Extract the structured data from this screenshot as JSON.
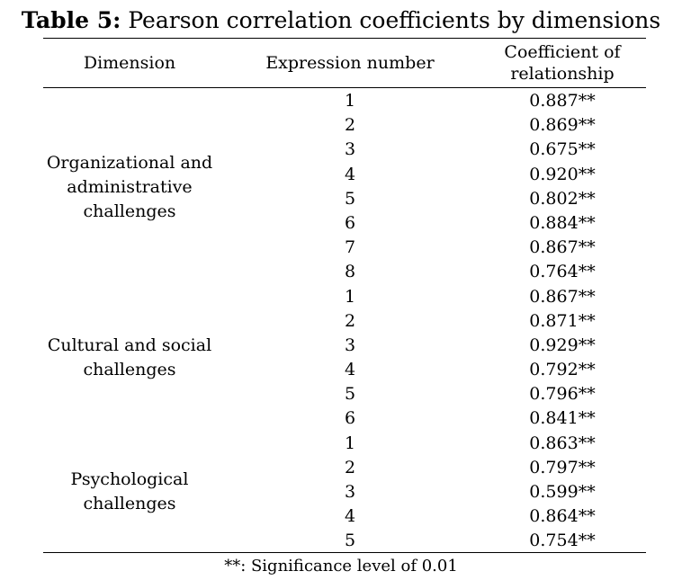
{
  "table": {
    "title_label": "Table 5:",
    "title_text": "Pearson correlation coefficients by dimensions",
    "headers": {
      "dimension": "Dimension",
      "expression_number": "Expression number",
      "coefficient_line1": "Coefficient of",
      "coefficient_line2": "relationship"
    },
    "groups": [
      {
        "name_lines": [
          "Organizational and",
          "administrative",
          "challenges"
        ],
        "rows": [
          {
            "number": "1",
            "coefficient": "0.887**"
          },
          {
            "number": "2",
            "coefficient": "0.869**"
          },
          {
            "number": "3",
            "coefficient": "0.675**"
          },
          {
            "number": "4",
            "coefficient": "0.920**"
          },
          {
            "number": "5",
            "coefficient": "0.802**"
          },
          {
            "number": "6",
            "coefficient": "0.884**"
          },
          {
            "number": "7",
            "coefficient": "0.867**"
          },
          {
            "number": "8",
            "coefficient": "0.764**"
          }
        ]
      },
      {
        "name_lines": [
          "Cultural and social",
          "challenges"
        ],
        "rows": [
          {
            "number": "1",
            "coefficient": "0.867**"
          },
          {
            "number": "2",
            "coefficient": "0.871**"
          },
          {
            "number": "3",
            "coefficient": "0.929**"
          },
          {
            "number": "4",
            "coefficient": "0.792**"
          },
          {
            "number": "5",
            "coefficient": "0.796**"
          },
          {
            "number": "6",
            "coefficient": "0.841**"
          }
        ]
      },
      {
        "name_lines": [
          "Psychological",
          "challenges"
        ],
        "rows": [
          {
            "number": "1",
            "coefficient": "0.863**"
          },
          {
            "number": "2",
            "coefficient": "0.797**"
          },
          {
            "number": "3",
            "coefficient": "0.599**"
          },
          {
            "number": "4",
            "coefficient": "0.864**"
          },
          {
            "number": "5",
            "coefficient": "0.754**"
          }
        ]
      }
    ],
    "footnote": "**: Significance level of 0.01"
  }
}
